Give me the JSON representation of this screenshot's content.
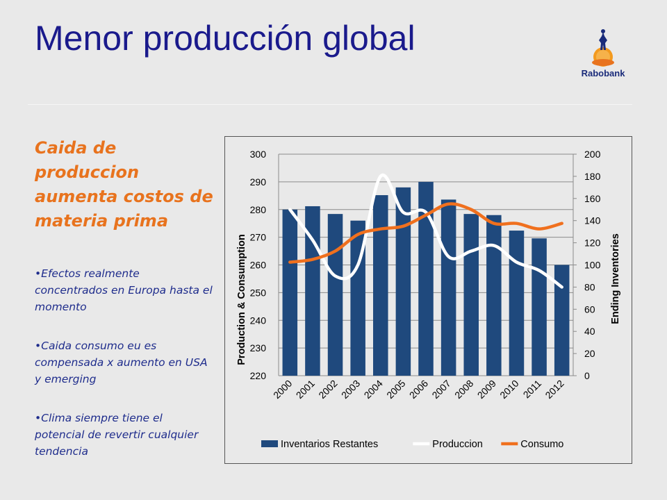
{
  "title": "Menor producción global",
  "logo": {
    "name": "Rabobank"
  },
  "heading": "Caida de produccion aumenta costos de materia prima",
  "bullets": [
    "Efectos realmente concentrados en Europa hasta el momento",
    "Caida consumo eu es compensada x aumento en USA y emerging",
    "Clima siempre tiene el potencial de revertir cualquier tendencia"
  ],
  "colors": {
    "title": "#1a1a8c",
    "accent": "#e8731e",
    "bar": "#1f497d",
    "produccion": "#ffffff",
    "consumo": "#f0701e"
  },
  "chart_data": {
    "type": "bar",
    "categories": [
      "2000",
      "2001",
      "2002",
      "2003",
      "2004",
      "2005",
      "2006",
      "2007",
      "2008",
      "2009",
      "2010",
      "2011",
      "2012"
    ],
    "xlabel": "",
    "ylabel": "Production & Consumption",
    "y2label": "Ending Inventories",
    "ylim": [
      220,
      300
    ],
    "y2lim": [
      0,
      200
    ],
    "yticks": [
      "300",
      "290",
      "280",
      "270",
      "260",
      "250",
      "240",
      "230",
      "220"
    ],
    "y2ticks": [
      "200",
      "180",
      "160",
      "140",
      "120",
      "100",
      "80",
      "60",
      "40",
      "20",
      "0"
    ],
    "grid": true,
    "legend_position": "bottom",
    "series": [
      {
        "name": "Inventarios Restantes",
        "type": "bar",
        "axis": "right",
        "values": [
          150,
          153,
          146,
          140,
          163,
          170,
          175,
          159,
          146,
          145,
          131,
          124,
          100
        ]
      },
      {
        "name": "Produccion",
        "type": "line",
        "axis": "left",
        "values": [
          280,
          269,
          256,
          260,
          292,
          279,
          279,
          263,
          265,
          267,
          261,
          258,
          252
        ]
      },
      {
        "name": "Consumo",
        "type": "line",
        "axis": "left",
        "values": [
          261,
          262,
          265,
          271,
          273,
          274,
          278,
          282,
          280,
          275,
          275,
          273,
          275
        ]
      }
    ]
  }
}
